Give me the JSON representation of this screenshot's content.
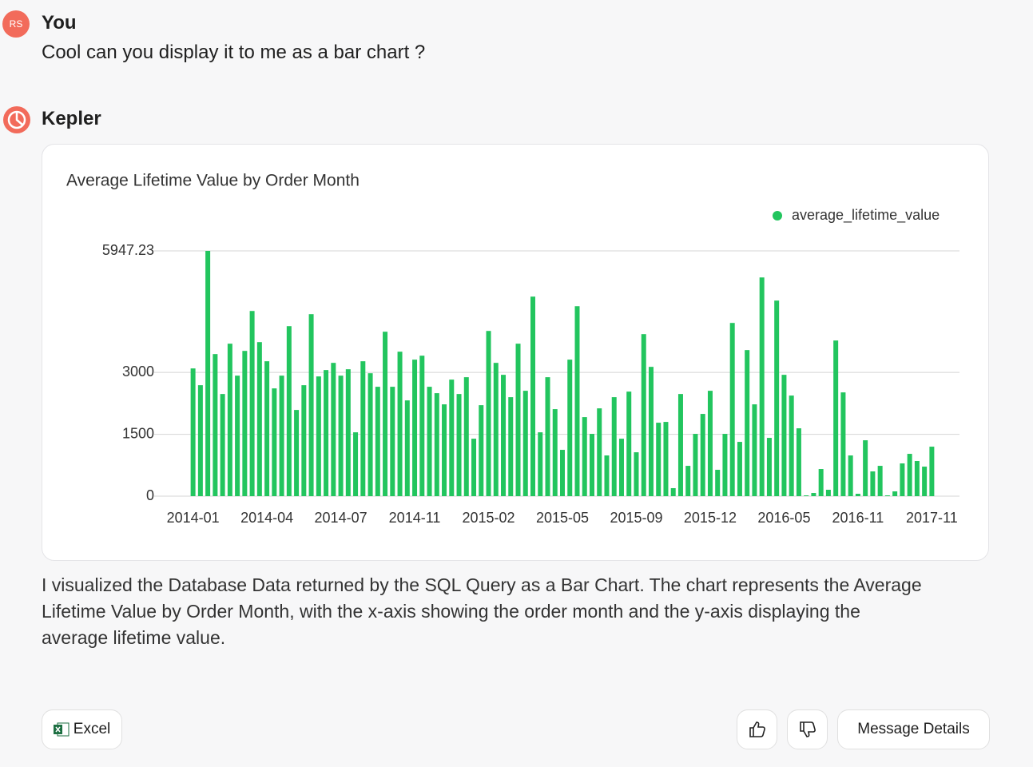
{
  "user": {
    "avatar": "RS",
    "name": "You",
    "message": "Cool can you display it to me as a bar chart ?"
  },
  "assistant": {
    "name": "Kepler",
    "response": "I visualized the Database Data returned by the SQL Query as a Bar Chart. The chart represents the Average Lifetime Value by Order Month, with the x-axis showing the order month and the y-axis displaying the average lifetime value."
  },
  "chart_data": {
    "type": "bar",
    "title": "Average Lifetime Value by Order Month",
    "categories": [
      "2014-01",
      null,
      null,
      null,
      null,
      null,
      null,
      null,
      null,
      null,
      "2014-04",
      null,
      null,
      null,
      null,
      null,
      null,
      null,
      null,
      null,
      "2014-07",
      null,
      null,
      null,
      null,
      null,
      null,
      null,
      null,
      null,
      "2014-11",
      null,
      null,
      null,
      null,
      null,
      null,
      null,
      null,
      null,
      "2015-02",
      null,
      null,
      null,
      null,
      null,
      null,
      null,
      null,
      null,
      "2015-05",
      null,
      null,
      null,
      null,
      null,
      null,
      null,
      null,
      null,
      "2015-09",
      null,
      null,
      null,
      null,
      null,
      null,
      null,
      null,
      null,
      "2015-12",
      null,
      null,
      null,
      null,
      null,
      null,
      null,
      null,
      null,
      "2016-05",
      null,
      null,
      null,
      null,
      null,
      null,
      null,
      null,
      null,
      "2016-11",
      null,
      null,
      null,
      null,
      null,
      null,
      null,
      null,
      null,
      "2017-11"
    ],
    "series": [
      {
        "name": "average_lifetime_value",
        "color": "#22c55e",
        "values": [
          3097,
          2690,
          5947.23,
          3445,
          2477,
          3697,
          2922,
          3522,
          4490,
          3735,
          3271,
          2613,
          2922,
          4122,
          2090,
          2690,
          4413,
          2903,
          3058,
          3232,
          2922,
          3077,
          1548,
          3271,
          2980,
          2652,
          3987,
          2652,
          3503,
          2322,
          3310,
          3406,
          2652,
          2497,
          2226,
          2826,
          2477,
          2884,
          1393,
          2206,
          4006,
          3232,
          2942,
          2400,
          3697,
          2555,
          4838,
          1548,
          2884,
          2110,
          1123,
          3310,
          4606,
          1916,
          1510,
          2129,
          987,
          2400,
          1393,
          2535,
          1064,
          3929,
          3135,
          1781,
          1800,
          194,
          2477,
          735,
          1510,
          1994,
          2555,
          639,
          1510,
          4200,
          1316,
          3542,
          2226,
          5303,
          1413,
          4742,
          2942,
          2439,
          1645,
          19,
          77,
          658,
          155,
          3774,
          2516,
          987,
          58,
          1355,
          600,
          735,
          19,
          116,
          794,
          1026,
          852,
          716,
          1200
        ]
      }
    ],
    "ylim": [
      0,
      5947.23
    ],
    "yticks": [
      0,
      1500,
      3000,
      5947.23
    ],
    "grid": true,
    "legend_position": "top-right"
  },
  "actions": {
    "export": "Excel",
    "details": "Message Details"
  }
}
